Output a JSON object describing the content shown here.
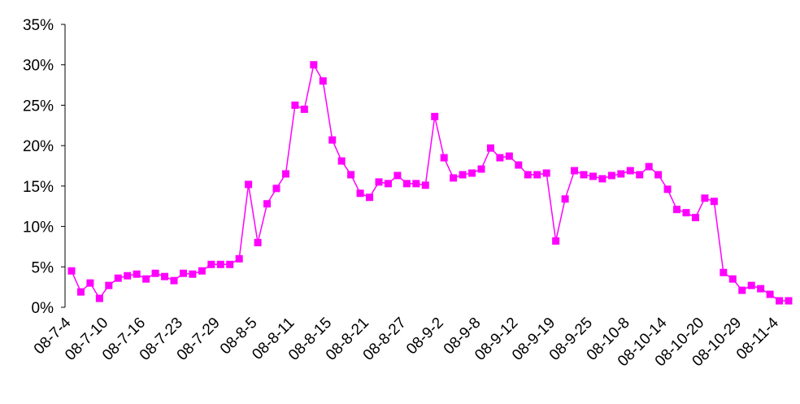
{
  "chart_data": {
    "type": "line",
    "categories": [
      "08-7-4",
      null,
      null,
      null,
      "08-7-10",
      null,
      null,
      null,
      "08-7-16",
      null,
      null,
      null,
      "08-7-23",
      null,
      null,
      null,
      "08-7-29",
      null,
      null,
      null,
      "08-8-5",
      null,
      null,
      null,
      "08-8-11",
      null,
      null,
      null,
      "08-8-15",
      null,
      null,
      null,
      "08-8-21",
      null,
      null,
      null,
      "08-8-27",
      null,
      null,
      null,
      "08-9-2",
      null,
      null,
      null,
      "08-9-8",
      null,
      null,
      null,
      "08-9-12",
      null,
      null,
      null,
      "08-9-19",
      null,
      null,
      null,
      "08-9-25",
      null,
      null,
      null,
      "08-10-8",
      null,
      null,
      null,
      "08-10-14",
      null,
      null,
      null,
      "08-10-20",
      null,
      null,
      null,
      "08-10-29",
      null,
      null,
      null,
      "08-11-4",
      null
    ],
    "series": [
      {
        "color": "#ff00ff",
        "values": [
          4.5,
          1.9,
          3.0,
          1.1,
          2.7,
          3.6,
          3.9,
          4.1,
          3.5,
          4.2,
          3.8,
          3.3,
          4.2,
          4.1,
          4.5,
          5.3,
          5.3,
          5.3,
          6.0,
          15.2,
          8.0,
          12.8,
          14.7,
          16.5,
          25.0,
          24.5,
          30.0,
          28.0,
          20.7,
          18.1,
          16.4,
          14.1,
          13.6,
          15.5,
          15.3,
          16.3,
          15.3,
          15.3,
          15.1,
          23.6,
          18.5,
          16.0,
          16.4,
          16.6,
          17.1,
          19.7,
          18.5,
          18.7,
          17.6,
          16.4,
          16.4,
          16.6,
          8.2,
          13.4,
          16.9,
          16.4,
          16.2,
          15.9,
          16.3,
          16.5,
          16.9,
          16.4,
          17.4,
          16.4,
          14.6,
          12.1,
          11.7,
          11.1,
          13.5,
          13.1,
          4.3,
          3.5,
          2.1,
          2.7,
          2.3,
          1.6,
          0.8,
          0.8
        ]
      }
    ],
    "ylim": [
      0,
      35
    ],
    "yticks": [
      {
        "value": 0,
        "label": "0%"
      },
      {
        "value": 5,
        "label": "5%"
      },
      {
        "value": 10,
        "label": "10%"
      },
      {
        "value": 15,
        "label": "15%"
      },
      {
        "value": 20,
        "label": "20%"
      },
      {
        "value": 25,
        "label": "25%"
      },
      {
        "value": 30,
        "label": "30%"
      },
      {
        "value": 35,
        "label": "35%"
      }
    ],
    "grid": false
  }
}
